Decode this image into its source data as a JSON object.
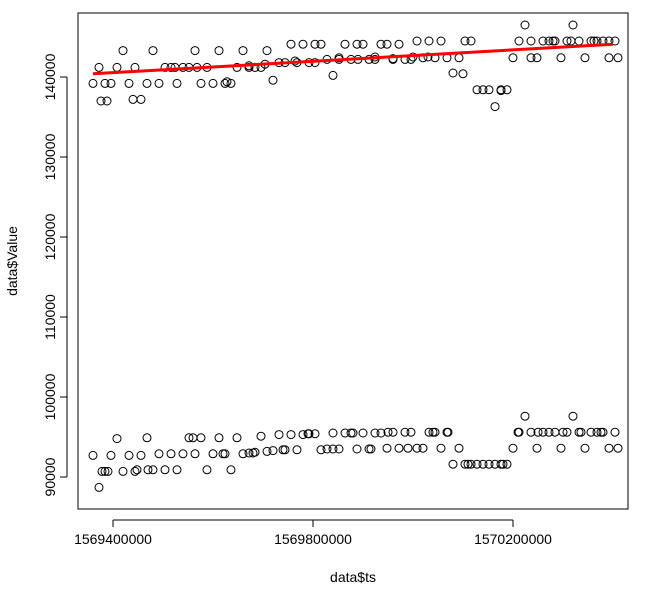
{
  "chart_data": {
    "type": "scatter",
    "title": "",
    "xlabel": "data$ts",
    "ylabel": "data$Value",
    "xlim": [
      1569330000,
      1570430000
    ],
    "ylim": [
      86000,
      148000
    ],
    "x_ticks": [
      1569400000,
      1569800000,
      1570200000
    ],
    "x_tick_labels": [
      "1569400000",
      "1569800000",
      "1570200000"
    ],
    "y_ticks": [
      90000,
      100000,
      110000,
      120000,
      130000,
      140000
    ],
    "y_tick_labels": [
      "90000",
      "100000",
      "110000",
      "120000",
      "130000",
      "140000"
    ],
    "grid": false,
    "point_style": "open-circle",
    "point_color": "#000000",
    "fit_line": {
      "color": "#ff0000",
      "x": [
        1569360000,
        1570400000
      ],
      "y": [
        140400,
        144100
      ]
    },
    "series": [
      {
        "points": [
          [
            1569360000,
            139200
          ],
          [
            1569372000,
            141200
          ],
          [
            1569384000,
            139200
          ],
          [
            1569396000,
            139200
          ],
          [
            1569408000,
            141200
          ],
          [
            1569420000,
            143300
          ],
          [
            1569432000,
            139200
          ],
          [
            1569444000,
            141200
          ],
          [
            1569456000,
            137200
          ],
          [
            1569468000,
            139200
          ],
          [
            1569480000,
            143300
          ],
          [
            1569492000,
            139200
          ],
          [
            1569504000,
            141200
          ],
          [
            1569516000,
            141200
          ],
          [
            1569528000,
            139200
          ],
          [
            1569540000,
            141200
          ],
          [
            1569552000,
            141200
          ],
          [
            1569564000,
            143300
          ],
          [
            1569576000,
            139200
          ],
          [
            1569588000,
            141200
          ],
          [
            1569600000,
            139200
          ],
          [
            1569612000,
            143300
          ],
          [
            1569624000,
            139200
          ],
          [
            1569636000,
            139200
          ],
          [
            1569648000,
            141200
          ],
          [
            1569660000,
            143300
          ],
          [
            1569672000,
            141200
          ],
          [
            1569684000,
            141200
          ],
          [
            1569696000,
            141200
          ],
          [
            1569708000,
            143300
          ],
          [
            1569720000,
            139600
          ],
          [
            1569732000,
            141800
          ],
          [
            1569744000,
            141800
          ],
          [
            1569756000,
            144100
          ],
          [
            1569768000,
            141800
          ],
          [
            1569780000,
            144100
          ],
          [
            1569792000,
            141800
          ],
          [
            1569804000,
            141800
          ],
          [
            1569816000,
            144100
          ],
          [
            1569828000,
            142200
          ],
          [
            1569840000,
            140200
          ],
          [
            1569852000,
            142200
          ],
          [
            1569864000,
            144100
          ],
          [
            1569876000,
            142200
          ],
          [
            1569888000,
            144100
          ],
          [
            1569900000,
            144100
          ],
          [
            1569912000,
            142200
          ],
          [
            1569924000,
            142200
          ],
          [
            1569936000,
            144100
          ],
          [
            1569948000,
            144100
          ],
          [
            1569960000,
            142200
          ],
          [
            1569972000,
            144100
          ],
          [
            1569984000,
            142200
          ],
          [
            1569996000,
            142200
          ],
          [
            1570008000,
            144500
          ],
          [
            1570020000,
            142400
          ],
          [
            1570032000,
            144500
          ],
          [
            1570044000,
            142400
          ],
          [
            1570056000,
            144500
          ],
          [
            1570068000,
            142400
          ],
          [
            1570080000,
            140500
          ],
          [
            1570092000,
            142400
          ],
          [
            1570104000,
            144500
          ],
          [
            1570116000,
            144500
          ],
          [
            1570128000,
            138400
          ],
          [
            1570140000,
            138400
          ],
          [
            1570152000,
            138400
          ],
          [
            1570164000,
            136300
          ],
          [
            1570176000,
            138400
          ],
          [
            1570188000,
            138400
          ],
          [
            1570200000,
            142400
          ],
          [
            1570212000,
            144500
          ],
          [
            1570224000,
            146500
          ],
          [
            1570236000,
            144500
          ],
          [
            1570248000,
            142400
          ],
          [
            1570260000,
            144500
          ],
          [
            1570272000,
            144500
          ],
          [
            1570284000,
            144500
          ],
          [
            1570296000,
            142400
          ],
          [
            1570308000,
            144500
          ],
          [
            1570320000,
            146500
          ],
          [
            1570332000,
            144500
          ],
          [
            1570344000,
            142400
          ],
          [
            1570356000,
            144500
          ],
          [
            1570368000,
            144500
          ],
          [
            1570380000,
            144500
          ],
          [
            1570392000,
            142400
          ],
          [
            1570404000,
            144500
          ],
          [
            1569376000,
            137000
          ],
          [
            1569388000,
            137000
          ],
          [
            1569440000,
            137200
          ],
          [
            1569524000,
            141200
          ],
          [
            1569568000,
            141200
          ],
          [
            1569628000,
            139400
          ],
          [
            1569672000,
            141400
          ],
          [
            1569704000,
            141600
          ],
          [
            1569764000,
            142000
          ],
          [
            1569804000,
            144100
          ],
          [
            1569852000,
            142400
          ],
          [
            1569890000,
            142200
          ],
          [
            1569924000,
            142500
          ],
          [
            1569960000,
            142300
          ],
          [
            1570000000,
            142500
          ],
          [
            1570030000,
            142500
          ],
          [
            1570100000,
            140400
          ],
          [
            1570176000,
            138300
          ],
          [
            1570236000,
            142400
          ],
          [
            1570280000,
            144500
          ],
          [
            1570316000,
            144500
          ],
          [
            1570362000,
            144500
          ],
          [
            1570392000,
            144500
          ],
          [
            1570410000,
            142400
          ]
        ]
      },
      {
        "points": [
          [
            1569360000,
            92700
          ],
          [
            1569372000,
            88700
          ],
          [
            1569384000,
            90700
          ],
          [
            1569396000,
            92700
          ],
          [
            1569408000,
            94800
          ],
          [
            1569420000,
            90700
          ],
          [
            1569432000,
            92700
          ],
          [
            1569444000,
            90700
          ],
          [
            1569456000,
            92700
          ],
          [
            1569468000,
            94900
          ],
          [
            1569480000,
            90900
          ],
          [
            1569492000,
            92900
          ],
          [
            1569504000,
            90900
          ],
          [
            1569516000,
            92900
          ],
          [
            1569528000,
            90900
          ],
          [
            1569540000,
            92900
          ],
          [
            1569552000,
            94900
          ],
          [
            1569564000,
            92900
          ],
          [
            1569576000,
            94900
          ],
          [
            1569588000,
            90900
          ],
          [
            1569600000,
            92900
          ],
          [
            1569612000,
            94900
          ],
          [
            1569624000,
            92900
          ],
          [
            1569636000,
            90900
          ],
          [
            1569648000,
            94900
          ],
          [
            1569660000,
            92900
          ],
          [
            1569672000,
            93000
          ],
          [
            1569684000,
            93100
          ],
          [
            1569696000,
            95100
          ],
          [
            1569708000,
            93200
          ],
          [
            1569720000,
            93300
          ],
          [
            1569732000,
            95300
          ],
          [
            1569744000,
            93400
          ],
          [
            1569756000,
            95300
          ],
          [
            1569768000,
            93400
          ],
          [
            1569780000,
            95300
          ],
          [
            1569792000,
            95400
          ],
          [
            1569804000,
            95400
          ],
          [
            1569816000,
            93400
          ],
          [
            1569828000,
            93500
          ],
          [
            1569840000,
            95500
          ],
          [
            1569852000,
            93500
          ],
          [
            1569864000,
            95500
          ],
          [
            1569876000,
            95500
          ],
          [
            1569888000,
            93500
          ],
          [
            1569900000,
            95500
          ],
          [
            1569912000,
            93500
          ],
          [
            1569924000,
            95500
          ],
          [
            1569936000,
            95500
          ],
          [
            1569948000,
            93600
          ],
          [
            1569960000,
            95600
          ],
          [
            1569972000,
            93600
          ],
          [
            1569984000,
            95600
          ],
          [
            1569996000,
            95600
          ],
          [
            1570008000,
            93600
          ],
          [
            1570020000,
            93600
          ],
          [
            1570032000,
            95600
          ],
          [
            1570044000,
            95600
          ],
          [
            1570056000,
            93600
          ],
          [
            1570068000,
            95600
          ],
          [
            1570080000,
            91600
          ],
          [
            1570092000,
            93600
          ],
          [
            1570104000,
            91600
          ],
          [
            1570116000,
            91600
          ],
          [
            1570128000,
            91600
          ],
          [
            1570140000,
            91600
          ],
          [
            1570152000,
            91600
          ],
          [
            1570164000,
            91600
          ],
          [
            1570176000,
            91600
          ],
          [
            1570188000,
            91600
          ],
          [
            1570200000,
            93600
          ],
          [
            1570212000,
            95600
          ],
          [
            1570224000,
            97600
          ],
          [
            1570236000,
            95600
          ],
          [
            1570248000,
            93600
          ],
          [
            1570260000,
            95600
          ],
          [
            1570272000,
            95600
          ],
          [
            1570284000,
            95600
          ],
          [
            1570296000,
            93600
          ],
          [
            1570308000,
            95600
          ],
          [
            1570320000,
            97600
          ],
          [
            1570332000,
            95600
          ],
          [
            1570344000,
            93600
          ],
          [
            1570356000,
            95600
          ],
          [
            1570368000,
            95600
          ],
          [
            1570380000,
            95600
          ],
          [
            1570392000,
            93600
          ],
          [
            1570404000,
            95600
          ],
          [
            1569378000,
            90700
          ],
          [
            1569390000,
            90700
          ],
          [
            1569448000,
            90900
          ],
          [
            1569470000,
            90900
          ],
          [
            1569560000,
            94900
          ],
          [
            1569620000,
            92900
          ],
          [
            1569680000,
            93000
          ],
          [
            1569740000,
            93400
          ],
          [
            1569790000,
            95400
          ],
          [
            1569840000,
            93500
          ],
          [
            1569880000,
            95500
          ],
          [
            1569916000,
            93500
          ],
          [
            1569950000,
            95600
          ],
          [
            1569990000,
            93600
          ],
          [
            1570040000,
            95600
          ],
          [
            1570070000,
            95600
          ],
          [
            1570110000,
            91600
          ],
          [
            1570180000,
            91600
          ],
          [
            1570210000,
            95600
          ],
          [
            1570250000,
            95600
          ],
          [
            1570300000,
            95600
          ],
          [
            1570336000,
            95600
          ],
          [
            1570376000,
            95600
          ],
          [
            1570410000,
            93600
          ]
        ]
      }
    ]
  }
}
